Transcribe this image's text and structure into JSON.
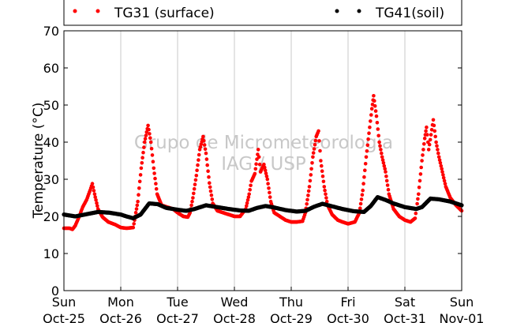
{
  "chart_data": {
    "type": "scatter",
    "ylabel": "Temperature (°C)",
    "ylim": [
      0,
      70
    ],
    "yticks": [
      0,
      10,
      20,
      30,
      40,
      50,
      60,
      70
    ],
    "xlim": [
      "2015-10-25",
      "2015-11-01"
    ],
    "xticks": [
      {
        "day": "Sun",
        "date": "Oct-25"
      },
      {
        "day": "Mon",
        "date": "Oct-26"
      },
      {
        "day": "Tue",
        "date": "Oct-27"
      },
      {
        "day": "Wed",
        "date": "Oct-28"
      },
      {
        "day": "Thu",
        "date": "Oct-29"
      },
      {
        "day": "Fri",
        "date": "Oct-30"
      },
      {
        "day": "Sat",
        "date": "Oct-31"
      },
      {
        "day": "Sun",
        "date": "Nov-01"
      }
    ],
    "grid": "vertical",
    "legend_position": "top",
    "watermark": [
      "Grupo de Micrometeorologia",
      "IAG / USP"
    ],
    "series": [
      {
        "name": "TG31 (surface)",
        "color": "#ff0000",
        "points": [
          [
            0.0,
            16.8
          ],
          [
            0.1,
            16.8
          ],
          [
            0.15,
            16.5
          ],
          [
            0.2,
            17.5
          ],
          [
            0.27,
            20.0
          ],
          [
            0.33,
            22.5
          ],
          [
            0.4,
            24.5
          ],
          [
            0.46,
            27.0
          ],
          [
            0.5,
            28.8
          ],
          [
            0.54,
            26.0
          ],
          [
            0.6,
            22.0
          ],
          [
            0.68,
            19.8
          ],
          [
            0.78,
            18.5
          ],
          [
            0.9,
            17.8
          ],
          [
            1.0,
            17.0
          ],
          [
            1.1,
            16.8
          ],
          [
            1.22,
            17.0
          ],
          [
            1.3,
            24.0
          ],
          [
            1.36,
            33.0
          ],
          [
            1.42,
            40.0
          ],
          [
            1.48,
            44.5
          ],
          [
            1.53,
            40.0
          ],
          [
            1.58,
            33.0
          ],
          [
            1.64,
            26.0
          ],
          [
            1.72,
            23.0
          ],
          [
            1.82,
            22.5
          ],
          [
            1.92,
            22.0
          ],
          [
            2.0,
            21.0
          ],
          [
            2.1,
            20.0
          ],
          [
            2.18,
            19.8
          ],
          [
            2.22,
            21.0
          ],
          [
            2.27,
            25.0
          ],
          [
            2.33,
            31.0
          ],
          [
            2.39,
            38.0
          ],
          [
            2.45,
            41.5
          ],
          [
            2.5,
            37.0
          ],
          [
            2.56,
            29.0
          ],
          [
            2.62,
            23.5
          ],
          [
            2.7,
            21.5
          ],
          [
            2.8,
            21.0
          ],
          [
            2.9,
            20.5
          ],
          [
            3.0,
            20.0
          ],
          [
            3.1,
            20.0
          ],
          [
            3.2,
            22.0
          ],
          [
            3.26,
            26.0
          ],
          [
            3.3,
            29.5
          ],
          [
            3.36,
            31.5
          ],
          [
            3.42,
            38.0
          ],
          [
            3.46,
            32.0
          ],
          [
            3.52,
            34.0
          ],
          [
            3.58,
            30.0
          ],
          [
            3.64,
            24.0
          ],
          [
            3.7,
            21.0
          ],
          [
            3.8,
            20.0
          ],
          [
            3.9,
            19.0
          ],
          [
            4.0,
            18.5
          ],
          [
            4.1,
            18.5
          ],
          [
            4.2,
            18.7
          ],
          [
            4.25,
            21.0
          ],
          [
            4.32,
            28.0
          ],
          [
            4.38,
            36.0
          ],
          [
            4.44,
            41.5
          ],
          [
            4.48,
            43.0
          ],
          [
            4.52,
            35.0
          ],
          [
            4.58,
            28.0
          ],
          [
            4.64,
            23.0
          ],
          [
            4.72,
            20.5
          ],
          [
            4.82,
            19.0
          ],
          [
            4.9,
            18.5
          ],
          [
            5.0,
            18.0
          ],
          [
            5.12,
            18.5
          ],
          [
            5.2,
            21.0
          ],
          [
            5.26,
            27.0
          ],
          [
            5.32,
            36.0
          ],
          [
            5.38,
            44.0
          ],
          [
            5.42,
            49.0
          ],
          [
            5.45,
            52.5
          ],
          [
            5.5,
            47.0
          ],
          [
            5.55,
            40.0
          ],
          [
            5.6,
            36.0
          ],
          [
            5.66,
            32.0
          ],
          [
            5.72,
            26.0
          ],
          [
            5.8,
            22.0
          ],
          [
            5.9,
            20.0
          ],
          [
            6.0,
            19.0
          ],
          [
            6.1,
            18.5
          ],
          [
            6.18,
            19.5
          ],
          [
            6.24,
            26.0
          ],
          [
            6.3,
            35.0
          ],
          [
            6.35,
            41.0
          ],
          [
            6.38,
            44.0
          ],
          [
            6.42,
            38.0
          ],
          [
            6.46,
            42.0
          ],
          [
            6.5,
            46.0
          ],
          [
            6.55,
            40.0
          ],
          [
            6.6,
            36.0
          ],
          [
            6.66,
            32.0
          ],
          [
            6.72,
            28.0
          ],
          [
            6.8,
            25.0
          ],
          [
            6.9,
            23.0
          ],
          [
            7.0,
            21.5
          ]
        ]
      },
      {
        "name": "TG41(soil)",
        "color": "#000000",
        "points": [
          [
            0.0,
            20.5
          ],
          [
            0.2,
            20.0
          ],
          [
            0.4,
            20.6
          ],
          [
            0.6,
            21.2
          ],
          [
            0.8,
            21.0
          ],
          [
            1.0,
            20.5
          ],
          [
            1.1,
            20.0
          ],
          [
            1.22,
            19.5
          ],
          [
            1.35,
            20.5
          ],
          [
            1.5,
            23.5
          ],
          [
            1.65,
            23.3
          ],
          [
            1.8,
            22.3
          ],
          [
            2.0,
            21.8
          ],
          [
            2.15,
            21.5
          ],
          [
            2.3,
            22.0
          ],
          [
            2.5,
            23.0
          ],
          [
            2.7,
            22.5
          ],
          [
            2.9,
            22.0
          ],
          [
            3.1,
            21.6
          ],
          [
            3.25,
            21.5
          ],
          [
            3.4,
            22.3
          ],
          [
            3.55,
            22.8
          ],
          [
            3.7,
            22.4
          ],
          [
            3.9,
            21.7
          ],
          [
            4.1,
            21.3
          ],
          [
            4.25,
            21.5
          ],
          [
            4.4,
            22.6
          ],
          [
            4.55,
            23.4
          ],
          [
            4.7,
            22.8
          ],
          [
            4.9,
            22.0
          ],
          [
            5.1,
            21.4
          ],
          [
            5.28,
            21.2
          ],
          [
            5.4,
            22.8
          ],
          [
            5.52,
            25.2
          ],
          [
            5.65,
            24.5
          ],
          [
            5.8,
            23.5
          ],
          [
            6.0,
            22.5
          ],
          [
            6.2,
            22.0
          ],
          [
            6.3,
            22.5
          ],
          [
            6.45,
            24.8
          ],
          [
            6.6,
            24.6
          ],
          [
            6.8,
            24.0
          ],
          [
            7.0,
            23.0
          ]
        ]
      }
    ]
  }
}
